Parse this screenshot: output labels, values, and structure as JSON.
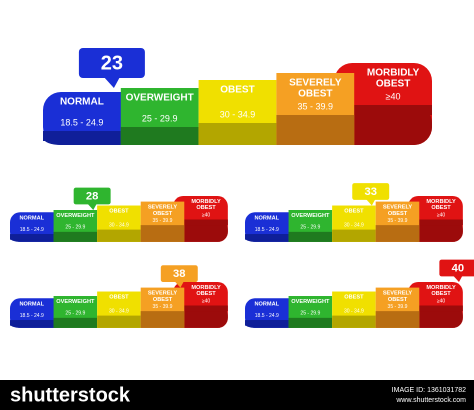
{
  "segments": [
    {
      "label": [
        "NORMAL"
      ],
      "range": "18.5 - 24.9"
    },
    {
      "label": [
        "OVERWEIGHT"
      ],
      "range": "25 - 29.9"
    },
    {
      "label": [
        "OBEST"
      ],
      "range": "30 - 34.9"
    },
    {
      "label": [
        "SEVERELY",
        "OBEST"
      ],
      "range": "35 - 39.9"
    },
    {
      "label": [
        "MORBIDLY",
        "OBEST"
      ],
      "range": "≥40"
    }
  ],
  "indicators": [
    23,
    28,
    33,
    38,
    40
  ],
  "footer": {
    "brand": "shutterstock",
    "image_id": "IMAGE ID: 1361031782",
    "url": "www.shutterstock.com"
  }
}
